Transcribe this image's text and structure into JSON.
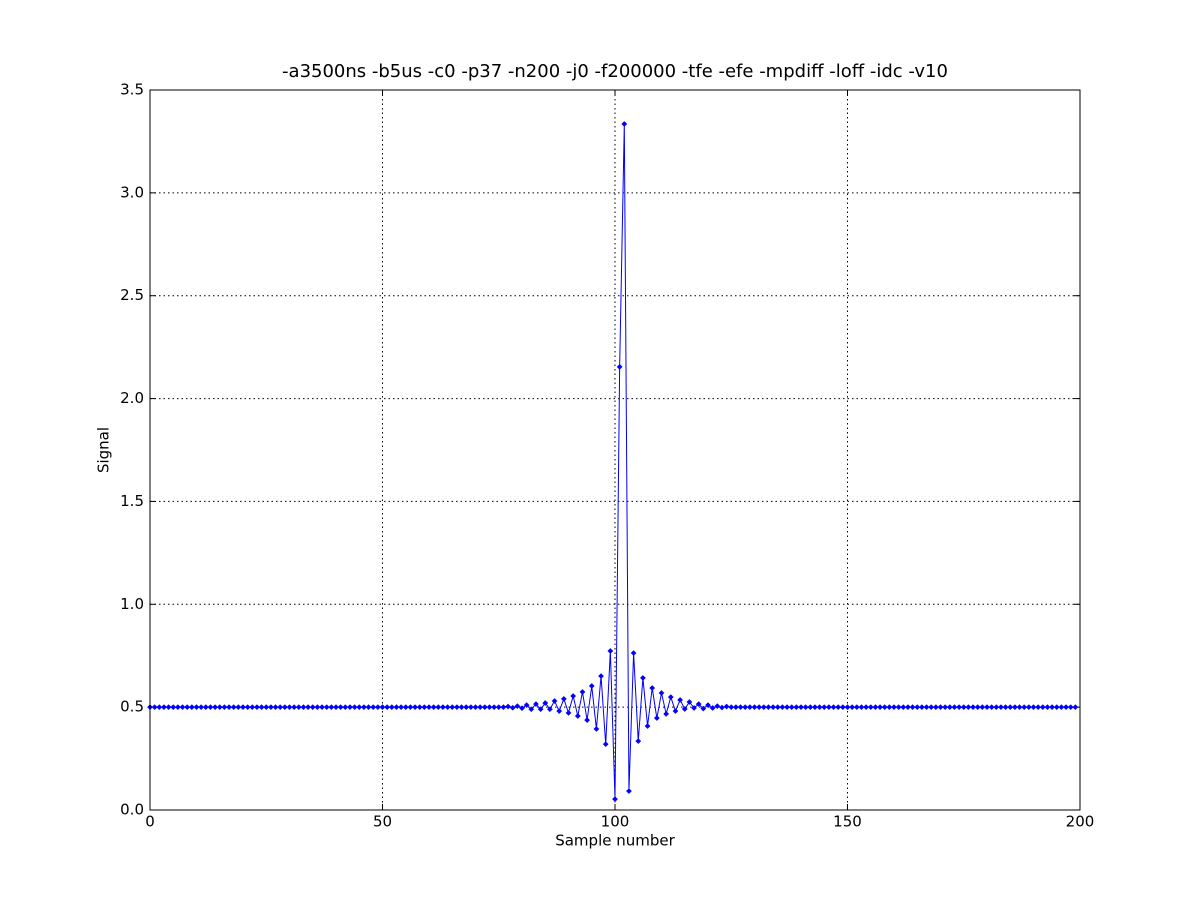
{
  "chart_data": {
    "type": "line",
    "title": "-a3500ns -b5us -c0 -p37 -n200 -j0 -f200000 -tfe -efe -mpdiff -loff -idc -v10",
    "x_label": "Sample number",
    "y_label": "Signal",
    "x": [
      0,
      1,
      2,
      3,
      4,
      5,
      6,
      7,
      8,
      9,
      10,
      11,
      12,
      13,
      14,
      15,
      16,
      17,
      18,
      19,
      20,
      21,
      22,
      23,
      24,
      25,
      26,
      27,
      28,
      29,
      30,
      31,
      32,
      33,
      34,
      35,
      36,
      37,
      38,
      39,
      40,
      41,
      42,
      43,
      44,
      45,
      46,
      47,
      48,
      49,
      50,
      51,
      52,
      53,
      54,
      55,
      56,
      57,
      58,
      59,
      60,
      61,
      62,
      63,
      64,
      65,
      66,
      67,
      68,
      69,
      70,
      71,
      72,
      73,
      74,
      75,
      76,
      77,
      78,
      79,
      80,
      81,
      82,
      83,
      84,
      85,
      86,
      87,
      88,
      89,
      90,
      91,
      92,
      93,
      94,
      95,
      96,
      97,
      98,
      99,
      100,
      101,
      102,
      103,
      104,
      105,
      106,
      107,
      108,
      109,
      110,
      111,
      112,
      113,
      114,
      115,
      116,
      117,
      118,
      119,
      120,
      121,
      122,
      123,
      124,
      125,
      126,
      127,
      128,
      129,
      130,
      131,
      132,
      133,
      134,
      135,
      136,
      137,
      138,
      139,
      140,
      141,
      142,
      143,
      144,
      145,
      146,
      147,
      148,
      149,
      150,
      151,
      152,
      153,
      154,
      155,
      156,
      157,
      158,
      159,
      160,
      161,
      162,
      163,
      164,
      165,
      166,
      167,
      168,
      169,
      170,
      171,
      172,
      173,
      174,
      175,
      176,
      177,
      178,
      179,
      180,
      181,
      182,
      183,
      184,
      185,
      186,
      187,
      188,
      189,
      190,
      191,
      192,
      193,
      194,
      195,
      196,
      197,
      198,
      199
    ],
    "series": [
      {
        "name": "Signal",
        "color": "#0000ff",
        "values": [
          0.5,
          0.5,
          0.5,
          0.5,
          0.5,
          0.5,
          0.5,
          0.5,
          0.5,
          0.5,
          0.5,
          0.5,
          0.5,
          0.5,
          0.5,
          0.5,
          0.5,
          0.5,
          0.5,
          0.5,
          0.5,
          0.5,
          0.5,
          0.5,
          0.5,
          0.5,
          0.5,
          0.5,
          0.5,
          0.5,
          0.5,
          0.5,
          0.5,
          0.5,
          0.5,
          0.5,
          0.5,
          0.5,
          0.5,
          0.5,
          0.5,
          0.5,
          0.5,
          0.5,
          0.5,
          0.5,
          0.5,
          0.5,
          0.5,
          0.5,
          0.5,
          0.5,
          0.5,
          0.5,
          0.5,
          0.5,
          0.5,
          0.5,
          0.5,
          0.5,
          0.5,
          0.5,
          0.5,
          0.5,
          0.5,
          0.5,
          0.5,
          0.5,
          0.5,
          0.5,
          0.5,
          0.5,
          0.5,
          0.5,
          0.5,
          0.5,
          0.5,
          0.503,
          0.497,
          0.505,
          0.495,
          0.51,
          0.49,
          0.515,
          0.49,
          0.52,
          0.49,
          0.53,
          0.481,
          0.54,
          0.472,
          0.554,
          0.457,
          0.574,
          0.437,
          0.603,
          0.394,
          0.651,
          0.32,
          0.773,
          0.053,
          2.154,
          3.335,
          0.092,
          0.763,
          0.335,
          0.642,
          0.408,
          0.593,
          0.447,
          0.569,
          0.467,
          0.549,
          0.481,
          0.535,
          0.491,
          0.525,
          0.496,
          0.515,
          0.493,
          0.51,
          0.496,
          0.505,
          0.498,
          0.503,
          0.5,
          0.5,
          0.5,
          0.5,
          0.5,
          0.5,
          0.5,
          0.5,
          0.5,
          0.5,
          0.5,
          0.5,
          0.5,
          0.5,
          0.5,
          0.5,
          0.5,
          0.5,
          0.5,
          0.5,
          0.5,
          0.5,
          0.5,
          0.5,
          0.5,
          0.5,
          0.5,
          0.5,
          0.5,
          0.5,
          0.5,
          0.5,
          0.5,
          0.5,
          0.5,
          0.5,
          0.5,
          0.5,
          0.5,
          0.5,
          0.5,
          0.5,
          0.5,
          0.5,
          0.5,
          0.5,
          0.5,
          0.5,
          0.5,
          0.5,
          0.5,
          0.5,
          0.5,
          0.5,
          0.5,
          0.5,
          0.5,
          0.5,
          0.5,
          0.5,
          0.5,
          0.5,
          0.5,
          0.5,
          0.5,
          0.5,
          0.5,
          0.5,
          0.5,
          0.5,
          0.5,
          0.5,
          0.5,
          0.5,
          0.5
        ]
      }
    ],
    "xlim": [
      0,
      200
    ],
    "xticks": [
      0,
      50,
      100,
      150,
      200
    ],
    "ylim": [
      0,
      3.5
    ],
    "yticks": [
      {
        "value": 0,
        "label": "0.0"
      },
      0.5,
      {
        "value": 1,
        "label": "1.0"
      },
      1.5,
      {
        "value": 2,
        "label": "2.0"
      },
      2.5,
      {
        "value": 3,
        "label": "3.0"
      },
      3.5
    ],
    "grid": true
  }
}
